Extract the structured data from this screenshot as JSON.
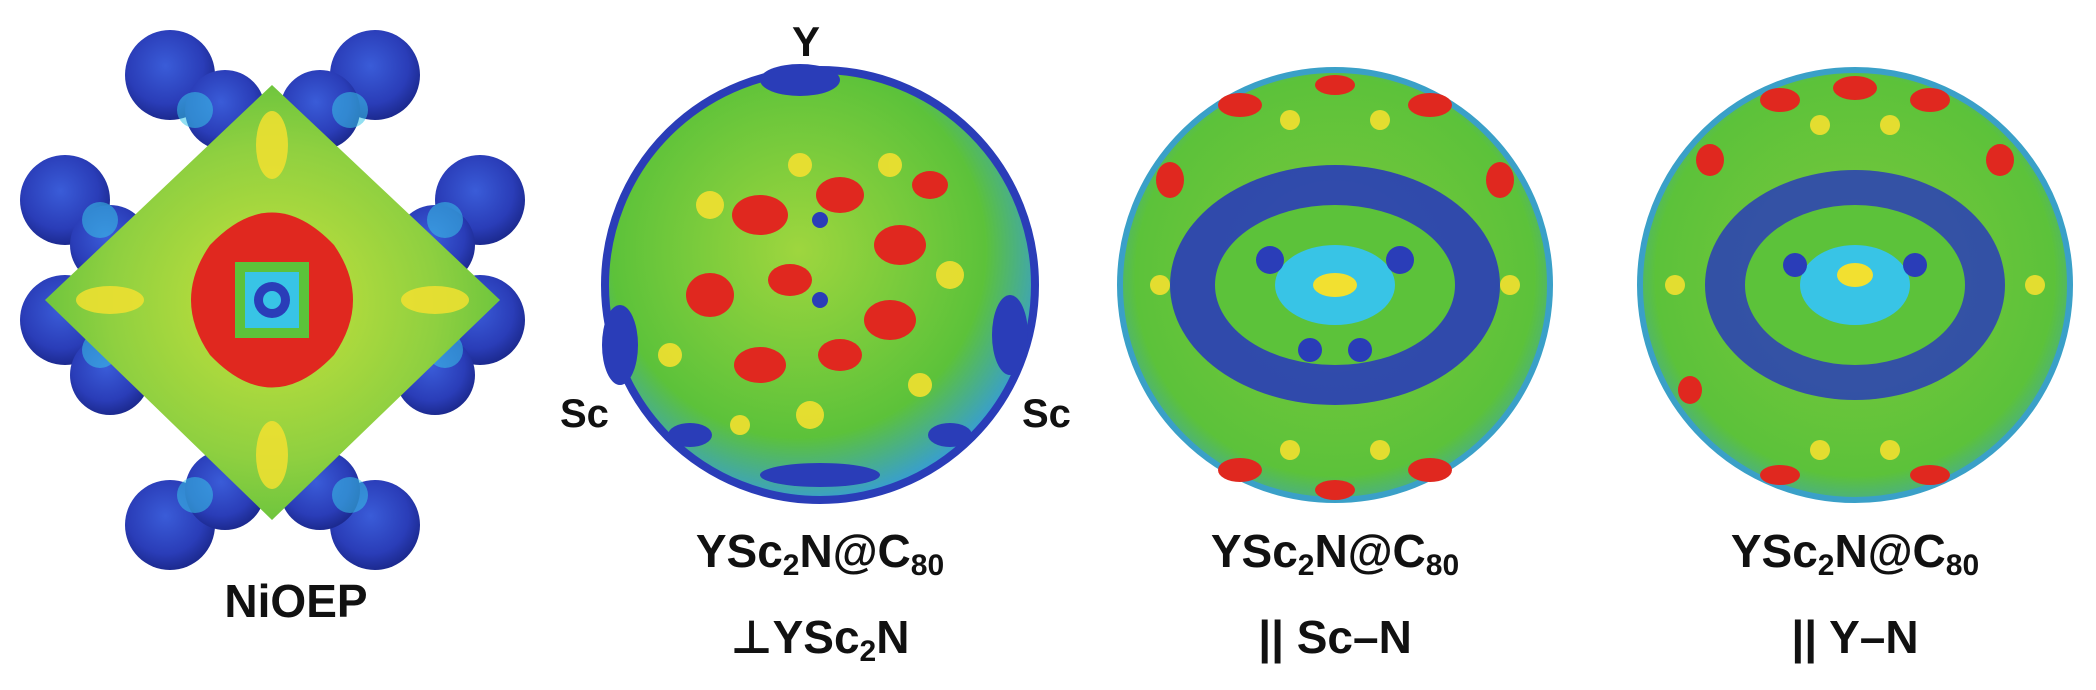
{
  "panels": [
    {
      "id": "niOEP",
      "caption": "NiOEP"
    },
    {
      "id": "perp",
      "caption_parts": [
        "YSc",
        "2",
        "N@C",
        "80"
      ],
      "subcaption_parts": [
        "⊥YSc",
        "2",
        "N"
      ],
      "atom_labels": {
        "top": "Y",
        "left": "Sc",
        "right": "Sc"
      }
    },
    {
      "id": "scn",
      "caption_parts": [
        "YSc",
        "2",
        "N@C",
        "80"
      ],
      "subcaption": "|| Sc–N"
    },
    {
      "id": "yn",
      "caption_parts": [
        "YSc",
        "2",
        "N@C",
        "80"
      ],
      "subcaption": "|| Y–N"
    }
  ],
  "colors": {
    "red": "#e0281f",
    "yellow": "#f2e030",
    "green": "#5cc23a",
    "cyan": "#38c4e6",
    "blue": "#2a3db8"
  }
}
